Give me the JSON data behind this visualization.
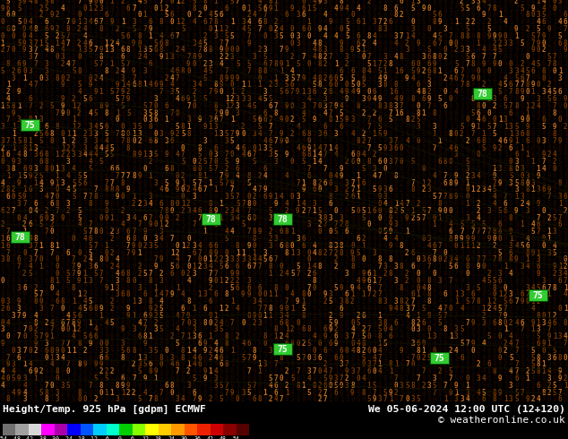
{
  "title_left": "Height/Temp. 925 hPa [gdpm] ECMWF",
  "title_right": "We 05-06-2024 12:00 UTC (12+120)",
  "credit": "© weatheronline.co.uk",
  "colorbar_values": [
    -54,
    -48,
    -42,
    -38,
    -30,
    -24,
    -18,
    -12,
    -6,
    0,
    6,
    12,
    18,
    24,
    30,
    36,
    42,
    48,
    54
  ],
  "colorbar_colors": [
    "#707070",
    "#a0a0a0",
    "#d8d8d8",
    "#ff00ff",
    "#aa00aa",
    "#0000ff",
    "#0055ff",
    "#00ccff",
    "#00ffcc",
    "#00cc00",
    "#88ff00",
    "#ffff00",
    "#ffcc00",
    "#ff9900",
    "#ff5500",
    "#ee2200",
    "#cc0000",
    "#880000",
    "#550000"
  ],
  "bg_color": "#ffa020",
  "digit_dark": "#1a0800",
  "digit_mid": "#7a3800",
  "digit_light": "#c87020",
  "contour_color": "#111100",
  "label_box_color": "#33cc33",
  "label_text_color": "#ffffff",
  "label_positions": [
    [
      33,
      310,
      "75"
    ],
    [
      315,
      60,
      "75"
    ],
    [
      490,
      50,
      "75"
    ],
    [
      600,
      120,
      "75"
    ],
    [
      22,
      185,
      "78"
    ],
    [
      235,
      205,
      "78"
    ],
    [
      315,
      205,
      "78"
    ],
    [
      538,
      345,
      "78"
    ]
  ],
  "fig_width": 6.34,
  "fig_height": 4.9,
  "dpi": 100
}
